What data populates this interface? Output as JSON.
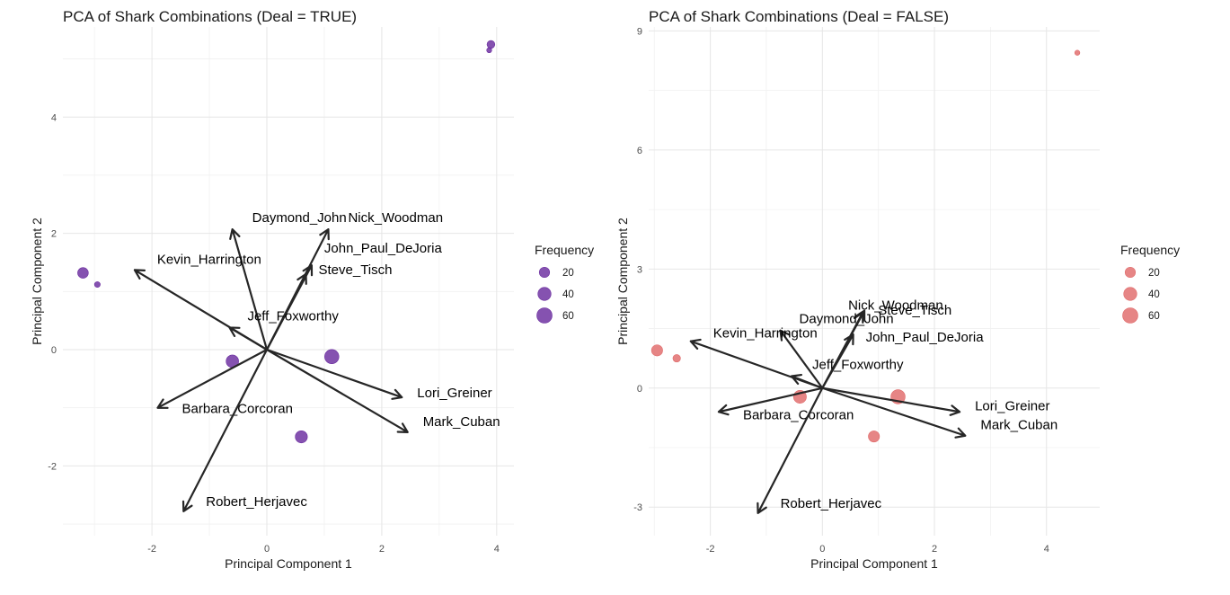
{
  "chart_data": [
    {
      "type": "scatter",
      "title": "PCA of Shark Combinations (Deal = TRUE)",
      "xlabel": "Principal Component 1",
      "ylabel": "Principal Component 2",
      "xlim": [
        -3.55,
        4.3
      ],
      "ylim": [
        -3.2,
        5.55
      ],
      "xticks": [
        -2,
        0,
        2,
        4
      ],
      "yticks": [
        -2,
        0,
        2,
        4
      ],
      "point_color": "#6a2c9f",
      "legend": {
        "title": "Frequency",
        "values": [
          20,
          40,
          60
        ],
        "position": "right"
      },
      "points": [
        {
          "x": -3.2,
          "y": 1.32,
          "freq": 22
        },
        {
          "x": -2.95,
          "y": 1.12,
          "freq": 2
        },
        {
          "x": -0.6,
          "y": -0.2,
          "freq": 35
        },
        {
          "x": 1.13,
          "y": -0.12,
          "freq": 50
        },
        {
          "x": 0.6,
          "y": -1.5,
          "freq": 32
        },
        {
          "x": 3.9,
          "y": 5.25,
          "freq": 8
        },
        {
          "x": 3.87,
          "y": 5.15,
          "freq": 1
        }
      ],
      "loadings": [
        {
          "name": "Daymond_John",
          "x": -0.6,
          "y": 2.07
        },
        {
          "name": "Nick_Woodman",
          "x": 1.07,
          "y": 2.07
        },
        {
          "name": "John_Paul_DeJoria",
          "x": 0.78,
          "y": 1.45
        },
        {
          "name": "Steve_Tisch",
          "x": 0.68,
          "y": 1.3
        },
        {
          "name": "Kevin_Harrington",
          "x": -2.3,
          "y": 1.37
        },
        {
          "name": "Jeff_Foxworthy",
          "x": -0.65,
          "y": 0.38
        },
        {
          "name": "Barbara_Corcoran",
          "x": -1.9,
          "y": -1.0
        },
        {
          "name": "Lori_Greiner",
          "x": 2.35,
          "y": -0.82
        },
        {
          "name": "Mark_Cuban",
          "x": 2.45,
          "y": -1.42
        },
        {
          "name": "Robert_Herjavec",
          "x": -1.45,
          "y": -2.78
        }
      ]
    },
    {
      "type": "scatter",
      "title": "PCA of Shark Combinations (Deal = FALSE)",
      "xlabel": "Principal Component 1",
      "ylabel": "Principal Component 2",
      "xlim": [
        -3.1,
        4.95
      ],
      "ylim": [
        -3.72,
        9.1
      ],
      "xticks": [
        -2,
        0,
        2,
        4
      ],
      "yticks": [
        -3,
        0,
        3,
        6,
        9
      ],
      "point_color": "#e06a6a",
      "legend": {
        "title": "Frequency",
        "values": [
          20,
          40,
          60
        ],
        "position": "right"
      },
      "points": [
        {
          "x": -2.95,
          "y": 0.95,
          "freq": 25
        },
        {
          "x": -2.6,
          "y": 0.75,
          "freq": 7
        },
        {
          "x": -0.4,
          "y": -0.22,
          "freq": 38
        },
        {
          "x": 1.35,
          "y": -0.22,
          "freq": 50
        },
        {
          "x": 0.92,
          "y": -1.22,
          "freq": 25
        },
        {
          "x": 4.55,
          "y": 8.45,
          "freq": 1
        }
      ],
      "loadings": [
        {
          "name": "Nick_Woodman",
          "x": 0.75,
          "y": 1.95
        },
        {
          "name": "Steve_Tisch",
          "x": 0.72,
          "y": 1.9
        },
        {
          "name": "John_Paul_DeJoria",
          "x": 0.55,
          "y": 1.35
        },
        {
          "name": "Daymond_John",
          "x": -0.75,
          "y": 1.45
        },
        {
          "name": "Kevin_Harrington",
          "x": -2.35,
          "y": 1.18
        },
        {
          "name": "Jeff_Foxworthy",
          "x": -0.55,
          "y": 0.3
        },
        {
          "name": "Barbara_Corcoran",
          "x": -1.85,
          "y": -0.6
        },
        {
          "name": "Lori_Greiner",
          "x": 2.45,
          "y": -0.6
        },
        {
          "name": "Mark_Cuban",
          "x": 2.55,
          "y": -1.2
        },
        {
          "name": "Robert_Herjavec",
          "x": -1.15,
          "y": -3.15
        }
      ]
    }
  ]
}
